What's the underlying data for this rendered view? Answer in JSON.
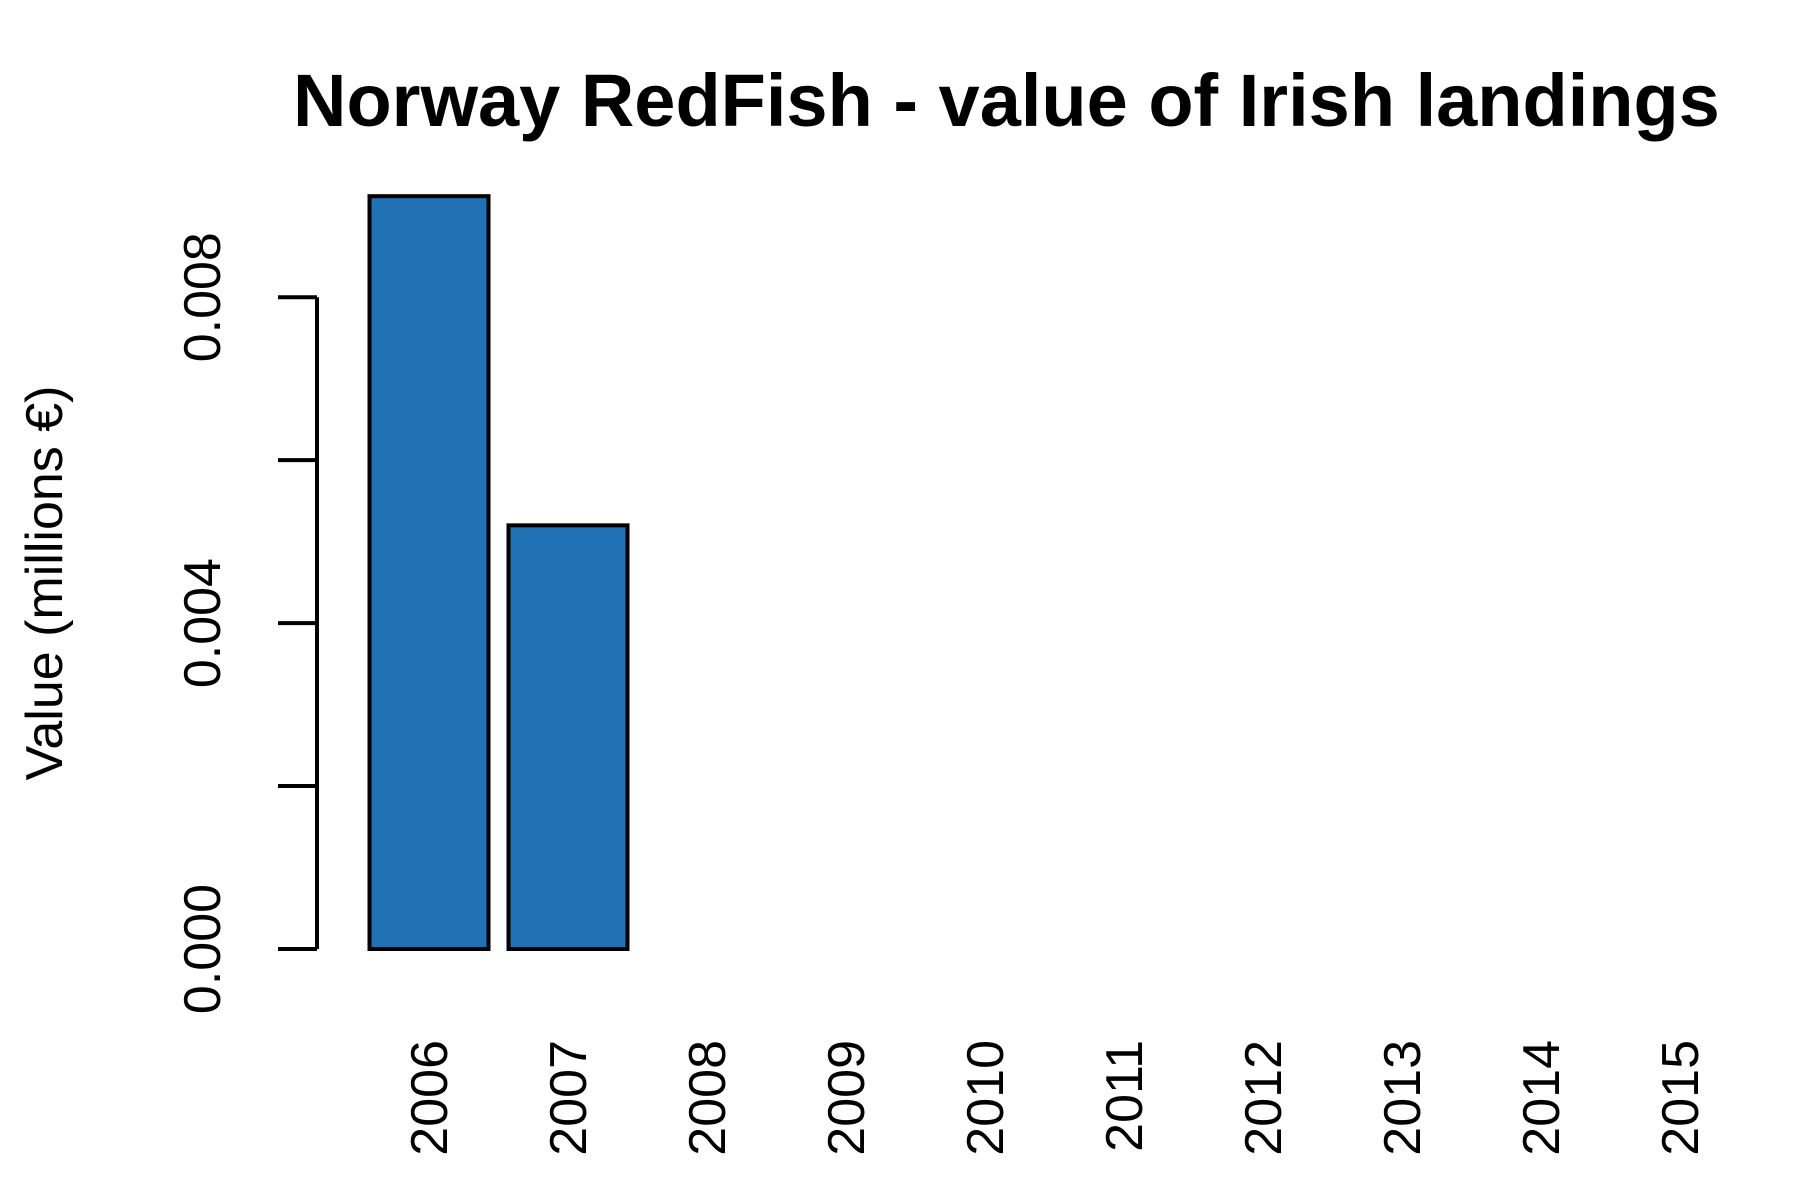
{
  "chart_data": {
    "type": "bar",
    "title": "Norway RedFish - value of Irish landings",
    "y_label": "Value (millions €)",
    "categories": [
      "2006",
      "2007",
      "2008",
      "2009",
      "2010",
      "2011",
      "2012",
      "2013",
      "2014",
      "2015"
    ],
    "values": [
      0.00924,
      0.0052,
      null,
      null,
      null,
      null,
      null,
      null,
      null,
      null
    ],
    "color": "#2171b5",
    "ylim": [
      0,
      0.0095
    ],
    "yticks": [
      {
        "value": 0,
        "label": "0.000"
      },
      {
        "value": 0.004,
        "label": "0.004"
      },
      {
        "value": 0.008,
        "label": "0.008"
      }
    ],
    "minor_yticks": [
      0.002,
      0.006
    ],
    "grid": false
  }
}
